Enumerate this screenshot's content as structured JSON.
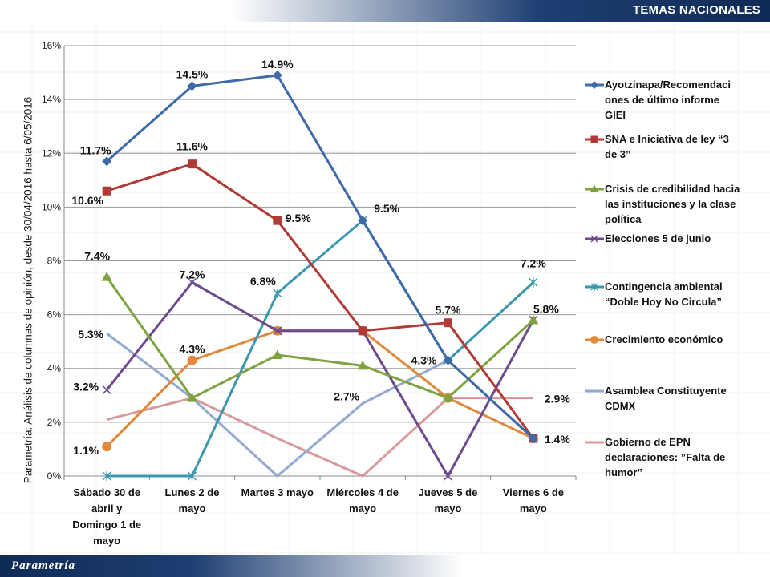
{
  "header": {
    "title": "TEMAS NACIONALES"
  },
  "side_label": "Parametría: Análisis de columnas de opinión, desde 30/04/2016 hasta  6/05/2016",
  "footer": {
    "logo": "Parametría"
  },
  "chart_data": {
    "type": "line",
    "categories": [
      [
        "Sábado 30 de",
        "abril y",
        "Domingo 1 de",
        "mayo"
      ],
      [
        "Lunes 2 de",
        "mayo"
      ],
      [
        "Martes 3 mayo"
      ],
      [
        "Miércoles 4 de",
        "mayo"
      ],
      [
        "Jueves 5 de",
        "mayo"
      ],
      [
        "Viernes 6 de",
        "mayo"
      ]
    ],
    "ylim": [
      0,
      16
    ],
    "yticks": [
      0,
      2,
      4,
      6,
      8,
      10,
      12,
      14,
      16
    ],
    "ytick_labels": [
      "0%",
      "2%",
      "4%",
      "6%",
      "8%",
      "10%",
      "12%",
      "14%",
      "16%"
    ],
    "grid": true,
    "legend_position": "right",
    "series": [
      {
        "name": "Ayotzinapa/Recomendaciones de último informe GIEI",
        "legend_lines": [
          "Ayotzinapa/Recomendaci",
          "ones de último informe",
          "GIEI"
        ],
        "color": "#3f6aa8",
        "marker": "diamond",
        "values": [
          11.7,
          14.5,
          14.9,
          9.5,
          4.3,
          1.4
        ],
        "labels": [
          "11.7%",
          "14.5%",
          "14.9%",
          "",
          "",
          ""
        ]
      },
      {
        "name": "SNA e Iniciativa de ley “3 de 3”",
        "legend_lines": [
          "SNA e Iniciativa de ley “3",
          "de 3”"
        ],
        "color": "#b03a36",
        "marker": "square",
        "values": [
          10.6,
          11.6,
          9.5,
          5.4,
          5.7,
          1.4
        ],
        "labels": [
          "10.6%",
          "11.6%",
          "9.5%",
          "",
          "5.7%",
          ""
        ]
      },
      {
        "name": "Crisis de credibilidad hacia las instituciones y la clase política",
        "legend_lines": [
          "Crisis de credibilidad hacia",
          "las instituciones y la clase",
          "política"
        ],
        "color": "#7fa241",
        "marker": "triangle",
        "values": [
          7.4,
          2.9,
          4.5,
          4.1,
          2.9,
          5.8
        ],
        "labels": [
          "7.4%",
          "",
          "",
          "",
          "",
          "5.8%"
        ]
      },
      {
        "name": "Elecciones 5 de junio",
        "legend_lines": [
          "Elecciones 5 de junio"
        ],
        "color": "#6d4a8e",
        "marker": "x",
        "values": [
          3.2,
          7.2,
          5.4,
          5.4,
          0.0,
          5.8
        ],
        "labels": [
          "3.2%",
          "7.2%",
          "",
          "",
          "",
          ""
        ]
      },
      {
        "name": "Contingencia ambiental “Doble Hoy No Circula”",
        "legend_lines": [
          "Contingencia ambiental",
          "“Doble Hoy No Circula”"
        ],
        "color": "#3a97ae",
        "marker": "star",
        "values": [
          0.0,
          0.0,
          6.8,
          9.5,
          4.3,
          7.2
        ],
        "labels": [
          "",
          "",
          "6.8%",
          "9.5%",
          "4.3%",
          "7.2%"
        ]
      },
      {
        "name": "Crecimiento económico",
        "legend_lines": [
          "Crecimiento económico"
        ],
        "color": "#e2883a",
        "marker": "circle",
        "values": [
          1.1,
          4.3,
          5.4,
          5.4,
          2.9,
          1.4
        ],
        "labels": [
          "1.1%",
          "4.3%",
          "",
          "",
          "",
          "1.4%"
        ]
      },
      {
        "name": "Asamblea Constituyente CDMX",
        "legend_lines": [
          "Asamblea Constituyente",
          "CDMX"
        ],
        "color": "#93a9d1",
        "marker": "none",
        "values": [
          5.3,
          2.9,
          0.0,
          2.7,
          4.3,
          1.4
        ],
        "labels": [
          "5.3%",
          "",
          "",
          "2.7%",
          "",
          ""
        ]
      },
      {
        "name": "Gobierno de EPN declaraciones: ”Falta de humor”",
        "legend_lines": [
          "Gobierno de EPN",
          "declaraciones: ”Falta de",
          "humor”"
        ],
        "color": "#d89a9a",
        "marker": "none",
        "values": [
          2.1,
          2.9,
          1.4,
          0.0,
          2.9,
          2.9
        ],
        "labels": [
          "",
          "",
          "",
          "",
          "",
          "2.9%"
        ]
      }
    ]
  }
}
